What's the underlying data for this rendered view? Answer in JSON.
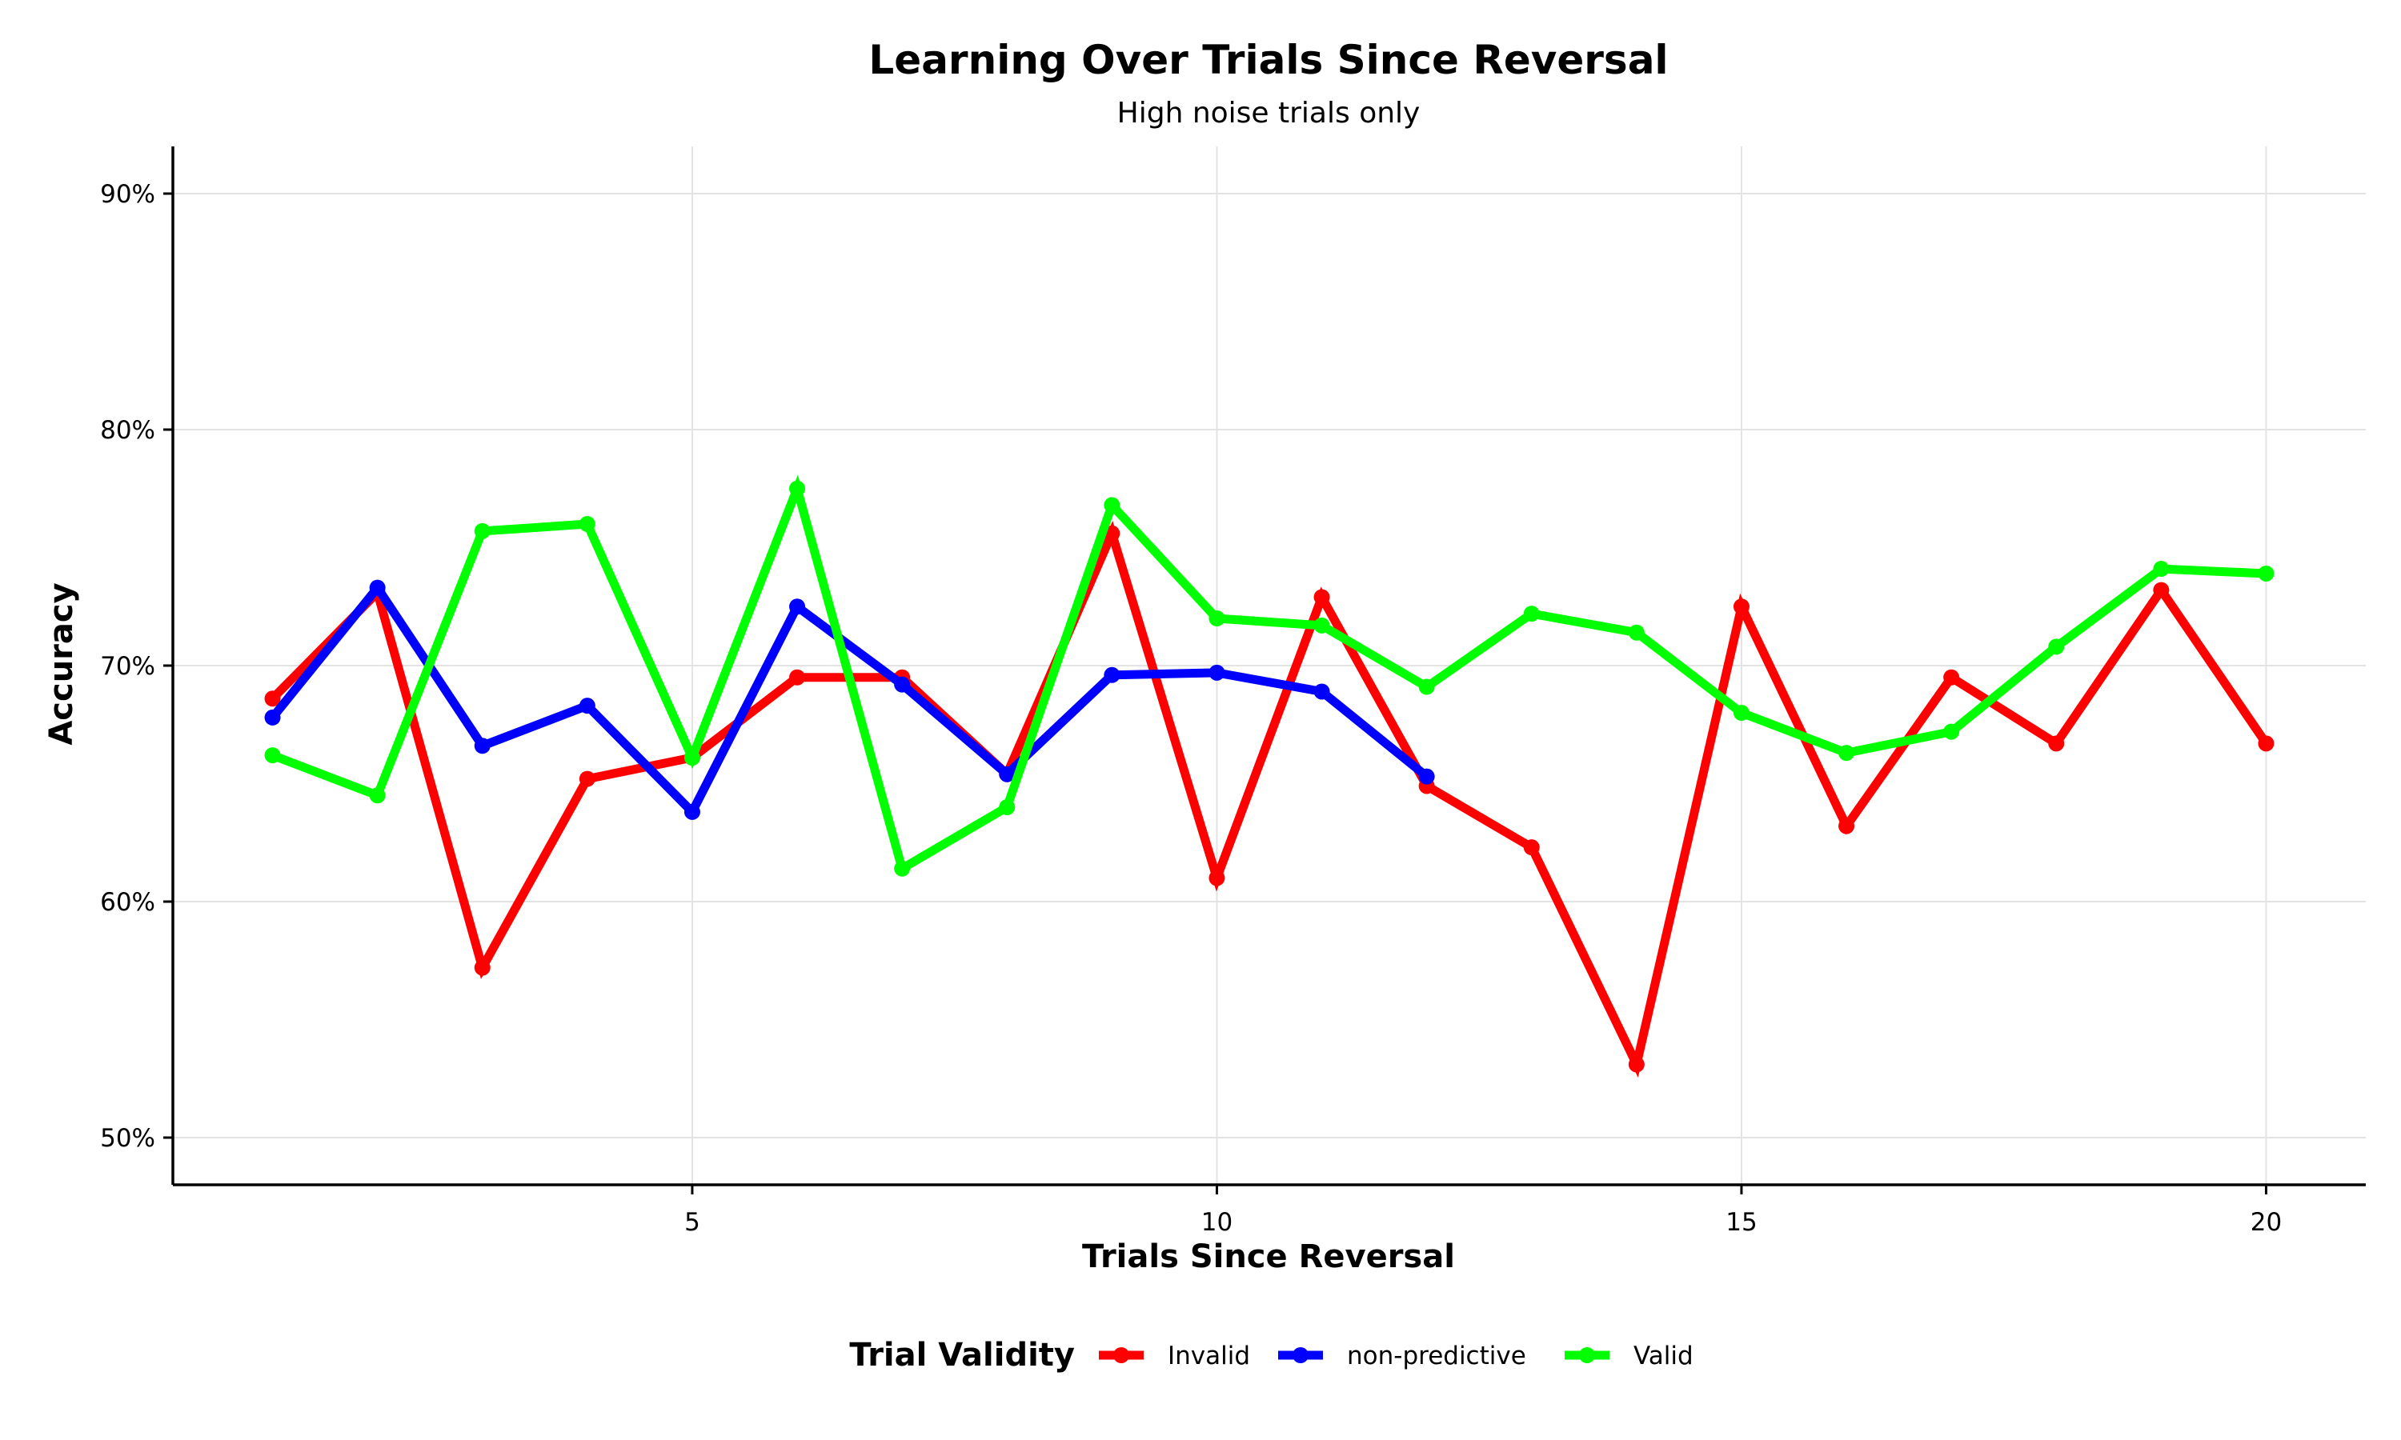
{
  "chart_data": {
    "type": "line",
    "title": "Learning Over Trials Since Reversal",
    "subtitle": "High noise trials only",
    "xlabel": "Trials Since Reversal",
    "ylabel": "Accuracy",
    "xlim": [
      0.05,
      20.95
    ],
    "ylim": [
      0.48,
      0.92
    ],
    "xticks": [
      5,
      10,
      15,
      20
    ],
    "xtick_labels": [
      "5",
      "10",
      "15",
      "20"
    ],
    "yticks": [
      0.5,
      0.6,
      0.7,
      0.8,
      0.9
    ],
    "ytick_labels": [
      "50%",
      "60%",
      "70%",
      "80%",
      "90%"
    ],
    "grid": true,
    "legend": {
      "title": "Trial Validity",
      "placement": "bottom-center"
    },
    "series": [
      {
        "name": "Invalid",
        "color": "#ff0000",
        "x": [
          1,
          2,
          3,
          4,
          5,
          6,
          7,
          8,
          9,
          10,
          11,
          12,
          13,
          14,
          15,
          16,
          17,
          18,
          19,
          20
        ],
        "values": [
          0.686,
          0.731,
          0.572,
          0.652,
          0.661,
          0.695,
          0.695,
          0.654,
          0.756,
          0.61,
          0.729,
          0.649,
          0.623,
          0.531,
          0.725,
          0.632,
          0.695,
          0.667,
          0.732,
          0.667
        ]
      },
      {
        "name": "non-predictive",
        "color": "#0000ff",
        "x": [
          1,
          2,
          3,
          4,
          5,
          6,
          7,
          8,
          9,
          10,
          11,
          12
        ],
        "values": [
          0.678,
          0.733,
          0.666,
          0.683,
          0.638,
          0.725,
          0.692,
          0.654,
          0.696,
          0.697,
          0.689,
          0.653
        ]
      },
      {
        "name": "Valid",
        "color": "#00ff00",
        "x": [
          1,
          2,
          3,
          4,
          5,
          6,
          7,
          8,
          9,
          10,
          11,
          12,
          13,
          14,
          15,
          16,
          17,
          18,
          19,
          20
        ],
        "values": [
          0.662,
          0.645,
          0.757,
          0.76,
          0.661,
          0.775,
          0.614,
          0.64,
          0.768,
          0.72,
          0.717,
          0.691,
          0.722,
          0.714,
          0.68,
          0.663,
          0.672,
          0.708,
          0.741,
          0.739
        ]
      }
    ]
  }
}
